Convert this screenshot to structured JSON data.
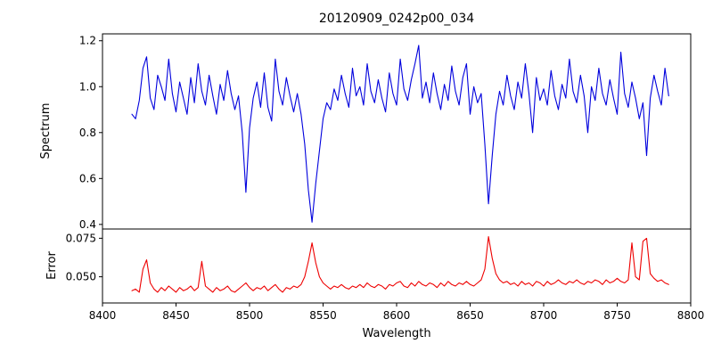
{
  "figure": {
    "background": "#ffffff",
    "frame_color": "#000000"
  },
  "chart_data": [
    {
      "type": "line",
      "title": "20120909_0242p00_034",
      "xlabel": "",
      "ylabel": "Spectrum",
      "xlim": [
        8400,
        8800
      ],
      "ylim": [
        0.38,
        1.23
      ],
      "x_start": 8420,
      "x_step": 2.5,
      "grid": false,
      "legend": "none",
      "yticks": [
        {
          "v": 0.4,
          "label": "0.4"
        },
        {
          "v": 0.6,
          "label": "0.6"
        },
        {
          "v": 0.8,
          "label": "0.8"
        },
        {
          "v": 1.0,
          "label": "1.0"
        },
        {
          "v": 1.2,
          "label": "1.2"
        }
      ],
      "xticks": [],
      "notable_absorption_lines": [
        {
          "wavelength": 8498,
          "min_flux": 0.54
        },
        {
          "wavelength": 8542,
          "min_flux": 0.41
        },
        {
          "wavelength": 8662,
          "min_flux": 0.49
        }
      ],
      "series": [
        {
          "name": "spectrum",
          "color": "#0000dd",
          "values": [
            0.88,
            0.86,
            0.94,
            1.08,
            1.13,
            0.95,
            0.9,
            1.05,
            1.0,
            0.94,
            1.12,
            0.97,
            0.89,
            1.02,
            0.95,
            0.88,
            1.04,
            0.93,
            1.1,
            0.98,
            0.92,
            1.05,
            0.96,
            0.88,
            1.01,
            0.94,
            1.07,
            0.97,
            0.9,
            0.96,
            0.8,
            0.54,
            0.82,
            0.95,
            1.02,
            0.91,
            1.06,
            0.91,
            0.85,
            1.12,
            0.98,
            0.92,
            1.04,
            0.96,
            0.89,
            0.97,
            0.88,
            0.75,
            0.55,
            0.41,
            0.58,
            0.72,
            0.86,
            0.93,
            0.9,
            0.99,
            0.94,
            1.05,
            0.97,
            0.91,
            1.08,
            0.96,
            1.0,
            0.92,
            1.1,
            0.98,
            0.93,
            1.03,
            0.95,
            0.89,
            1.06,
            0.97,
            0.92,
            1.12,
            0.99,
            0.94,
            1.03,
            1.1,
            1.18,
            0.95,
            1.02,
            0.93,
            1.06,
            0.97,
            0.9,
            1.01,
            0.94,
            1.09,
            0.98,
            0.92,
            1.04,
            1.1,
            0.88,
            1.0,
            0.93,
            0.97,
            0.75,
            0.49,
            0.7,
            0.88,
            0.98,
            0.92,
            1.05,
            0.96,
            0.9,
            1.02,
            0.95,
            1.1,
            0.97,
            0.8,
            1.04,
            0.94,
            0.99,
            0.92,
            1.07,
            0.96,
            0.9,
            1.01,
            0.95,
            1.12,
            0.98,
            0.93,
            1.05,
            0.96,
            0.8,
            1.0,
            0.94,
            1.08,
            0.97,
            0.92,
            1.03,
            0.95,
            0.88,
            1.15,
            0.97,
            0.91,
            1.02,
            0.95,
            0.86,
            0.93,
            0.7,
            0.95,
            1.05,
            0.98,
            0.92,
            1.08,
            0.96
          ]
        }
      ]
    },
    {
      "type": "line",
      "title": "",
      "xlabel": "Wavelength",
      "ylabel": "Error",
      "xlim": [
        8400,
        8800
      ],
      "ylim": [
        0.033,
        0.081
      ],
      "x_start": 8420,
      "x_step": 2.5,
      "grid": false,
      "legend": "none",
      "yticks": [
        {
          "v": 0.05,
          "label": "0.050"
        },
        {
          "v": 0.075,
          "label": "0.075"
        }
      ],
      "xticks": [
        {
          "v": 8400,
          "label": "8400"
        },
        {
          "v": 8450,
          "label": "8450"
        },
        {
          "v": 8500,
          "label": "8500"
        },
        {
          "v": 8550,
          "label": "8550"
        },
        {
          "v": 8600,
          "label": "8600"
        },
        {
          "v": 8650,
          "label": "8650"
        },
        {
          "v": 8700,
          "label": "8700"
        },
        {
          "v": 8750,
          "label": "8750"
        },
        {
          "v": 8800,
          "label": "8800"
        }
      ],
      "series": [
        {
          "name": "error",
          "color": "#ee0000",
          "values": [
            0.041,
            0.042,
            0.04,
            0.055,
            0.061,
            0.046,
            0.042,
            0.04,
            0.043,
            0.041,
            0.044,
            0.042,
            0.04,
            0.043,
            0.041,
            0.042,
            0.044,
            0.041,
            0.043,
            0.06,
            0.044,
            0.042,
            0.04,
            0.043,
            0.041,
            0.042,
            0.044,
            0.041,
            0.04,
            0.042,
            0.044,
            0.046,
            0.043,
            0.041,
            0.043,
            0.042,
            0.044,
            0.041,
            0.043,
            0.045,
            0.042,
            0.04,
            0.043,
            0.042,
            0.044,
            0.043,
            0.045,
            0.05,
            0.06,
            0.072,
            0.059,
            0.05,
            0.046,
            0.044,
            0.042,
            0.044,
            0.043,
            0.045,
            0.043,
            0.042,
            0.044,
            0.043,
            0.045,
            0.043,
            0.046,
            0.044,
            0.043,
            0.045,
            0.044,
            0.042,
            0.045,
            0.044,
            0.046,
            0.047,
            0.044,
            0.043,
            0.046,
            0.044,
            0.047,
            0.045,
            0.044,
            0.046,
            0.045,
            0.043,
            0.046,
            0.044,
            0.047,
            0.045,
            0.044,
            0.046,
            0.045,
            0.047,
            0.045,
            0.044,
            0.046,
            0.048,
            0.055,
            0.076,
            0.062,
            0.052,
            0.048,
            0.046,
            0.047,
            0.045,
            0.046,
            0.044,
            0.047,
            0.045,
            0.046,
            0.044,
            0.047,
            0.046,
            0.044,
            0.047,
            0.045,
            0.046,
            0.048,
            0.046,
            0.045,
            0.047,
            0.046,
            0.048,
            0.046,
            0.045,
            0.047,
            0.046,
            0.048,
            0.047,
            0.045,
            0.048,
            0.046,
            0.047,
            0.049,
            0.047,
            0.046,
            0.048,
            0.072,
            0.05,
            0.048,
            0.073,
            0.075,
            0.052,
            0.049,
            0.047,
            0.048,
            0.046,
            0.045
          ]
        }
      ]
    }
  ]
}
